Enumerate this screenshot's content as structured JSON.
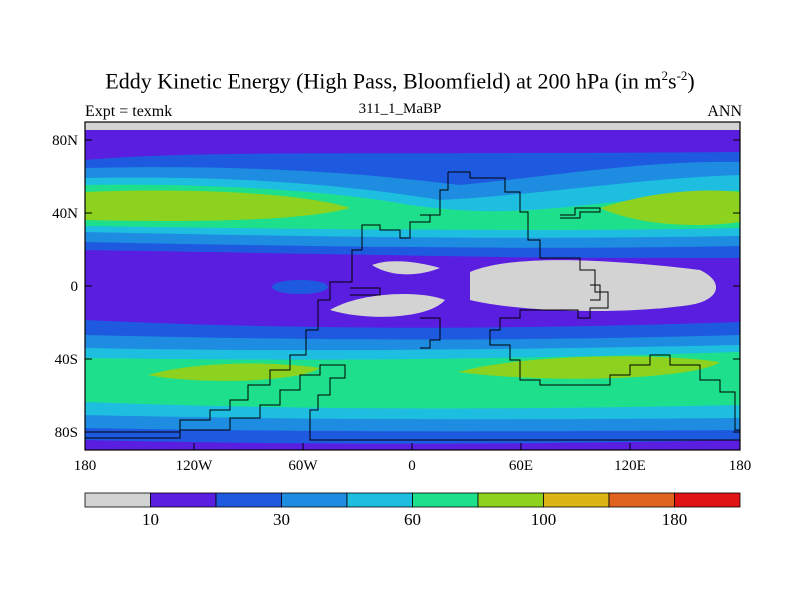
{
  "title": {
    "main": "Eddy Kinetic Energy (High Pass, Bloomfield) at 200 hPa (in m",
    "sup1": "2",
    "mid": "s",
    "sup2": "-2",
    "end": ")"
  },
  "expt_label": "Expt = texmk",
  "subtitle": "311_1_MaBP",
  "season": "ANN",
  "map": {
    "projection": "cylindrical-equidistant",
    "lon_range": [
      -180,
      180
    ],
    "lat_range": [
      -90,
      90
    ],
    "lat_ticks": [
      "80N",
      "40N",
      "0",
      "40S",
      "80S"
    ],
    "lat_tick_values": [
      80,
      40,
      0,
      -40,
      -80
    ],
    "lon_ticks": [
      "180",
      "120W",
      "60W",
      "0",
      "60E",
      "120E",
      "180"
    ],
    "lon_tick_values": [
      -180,
      -120,
      -60,
      0,
      60,
      120,
      180
    ],
    "field": "eddy kinetic energy",
    "contour_fill": true,
    "coastlines": "paleo continents (blocky outline)"
  },
  "colorbar": {
    "colors": [
      "#d3d3d3",
      "#5a1ee0",
      "#1e5ae0",
      "#1e8ce0",
      "#1ebee0",
      "#1ee08c",
      "#8cd21e",
      "#dcb414",
      "#e0641e",
      "#e01414"
    ],
    "labels": [
      "10",
      "30",
      "60",
      "100",
      "180"
    ],
    "label_positions": [
      1,
      3,
      5,
      7,
      9
    ]
  }
}
